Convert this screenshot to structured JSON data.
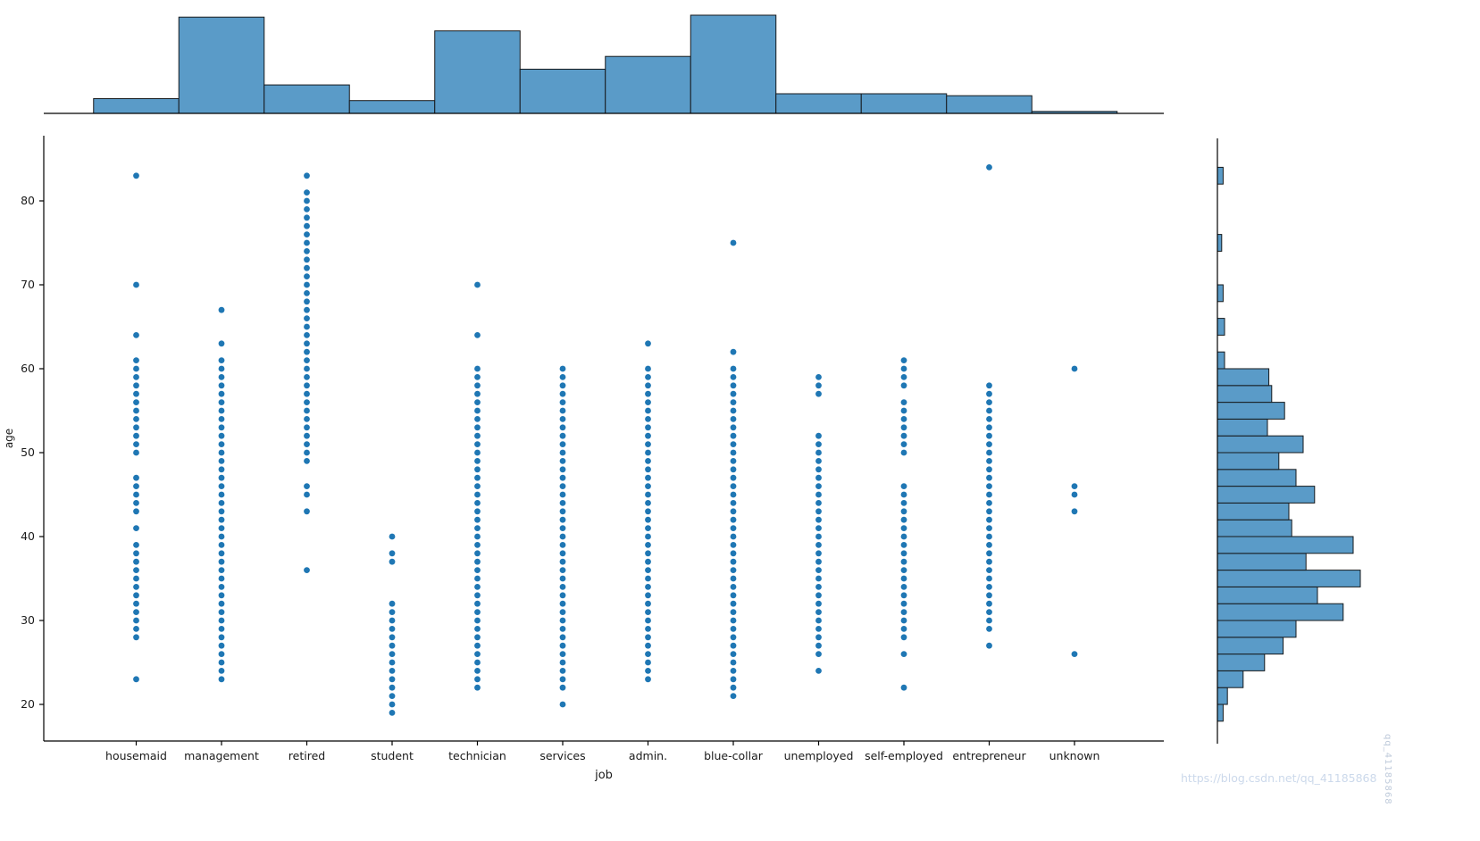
{
  "watermark": {
    "bottom_right": "https://blog.csdn.net/qq_41185868",
    "side": "qq_41185868"
  },
  "colors": {
    "dot": "#1f77b4",
    "bar_fill": "#5a9bc8",
    "bar_edge": "#16191c",
    "axis": "#000000",
    "text": "#1a1a1a"
  },
  "chart_data": {
    "type": "scatter",
    "title": "",
    "xlabel": "job",
    "ylabel": "age",
    "legend": "none",
    "grid": false,
    "categories": [
      "housemaid",
      "management",
      "retired",
      "student",
      "technician",
      "services",
      "admin.",
      "blue-collar",
      "unemployed",
      "self-employed",
      "entrepreneur",
      "unknown"
    ],
    "y_ticks": [
      20,
      30,
      40,
      50,
      60,
      70,
      80
    ],
    "ylim": [
      15.6,
      87.8
    ],
    "series": [
      {
        "job": "housemaid",
        "ages": [
          83,
          70,
          64,
          61,
          60,
          59,
          58,
          57,
          56,
          55,
          54,
          53,
          52,
          51,
          50,
          47,
          46,
          45,
          44,
          43,
          41,
          39,
          38,
          37,
          36,
          35,
          34,
          33,
          32,
          31,
          30,
          29,
          28,
          23
        ]
      },
      {
        "job": "management",
        "ages": [
          67,
          63,
          61,
          60,
          59,
          58,
          57,
          56,
          55,
          54,
          53,
          52,
          51,
          50,
          49,
          48,
          47,
          46,
          45,
          44,
          43,
          42,
          41,
          40,
          39,
          38,
          37,
          36,
          35,
          34,
          33,
          32,
          31,
          30,
          29,
          28,
          27,
          26,
          25,
          24,
          23
        ]
      },
      {
        "job": "retired",
        "ages": [
          83,
          81,
          80,
          79,
          78,
          77,
          76,
          75,
          74,
          73,
          72,
          71,
          70,
          69,
          68,
          67,
          66,
          65,
          64,
          63,
          62,
          61,
          60,
          59,
          58,
          57,
          56,
          55,
          54,
          53,
          52,
          51,
          50,
          49,
          46,
          45,
          43,
          36
        ]
      },
      {
        "job": "student",
        "ages": [
          40,
          38,
          37,
          32,
          31,
          30,
          29,
          28,
          27,
          26,
          25,
          24,
          23,
          22,
          21,
          20,
          19
        ]
      },
      {
        "job": "technician",
        "ages": [
          70,
          64,
          60,
          59,
          58,
          57,
          56,
          55,
          54,
          53,
          52,
          51,
          50,
          49,
          48,
          47,
          46,
          45,
          44,
          43,
          42,
          41,
          40,
          39,
          38,
          37,
          36,
          35,
          34,
          33,
          32,
          31,
          30,
          29,
          28,
          27,
          26,
          25,
          24,
          23,
          22
        ]
      },
      {
        "job": "services",
        "ages": [
          60,
          59,
          58,
          57,
          56,
          55,
          54,
          53,
          52,
          51,
          50,
          49,
          48,
          47,
          46,
          45,
          44,
          43,
          42,
          41,
          40,
          39,
          38,
          37,
          36,
          35,
          34,
          33,
          32,
          31,
          30,
          29,
          28,
          27,
          26,
          25,
          24,
          23,
          22,
          20
        ]
      },
      {
        "job": "admin.",
        "ages": [
          63,
          60,
          59,
          58,
          57,
          56,
          55,
          54,
          53,
          52,
          51,
          50,
          49,
          48,
          47,
          46,
          45,
          44,
          43,
          42,
          41,
          40,
          39,
          38,
          37,
          36,
          35,
          34,
          33,
          32,
          31,
          30,
          29,
          28,
          27,
          26,
          25,
          24,
          23
        ]
      },
      {
        "job": "blue-collar",
        "ages": [
          75,
          62,
          60,
          59,
          58,
          57,
          56,
          55,
          54,
          53,
          52,
          51,
          50,
          49,
          48,
          47,
          46,
          45,
          44,
          43,
          42,
          41,
          40,
          39,
          38,
          37,
          36,
          35,
          34,
          33,
          32,
          31,
          30,
          29,
          28,
          27,
          26,
          25,
          24,
          23,
          22,
          21
        ]
      },
      {
        "job": "unemployed",
        "ages": [
          59,
          58,
          57,
          52,
          51,
          50,
          49,
          48,
          47,
          46,
          45,
          44,
          43,
          42,
          41,
          40,
          39,
          38,
          37,
          36,
          35,
          34,
          33,
          32,
          31,
          30,
          29,
          28,
          27,
          26,
          24
        ]
      },
      {
        "job": "self-employed",
        "ages": [
          61,
          60,
          59,
          58,
          56,
          55,
          54,
          53,
          52,
          51,
          50,
          46,
          45,
          44,
          43,
          42,
          41,
          40,
          39,
          38,
          37,
          36,
          35,
          34,
          33,
          32,
          31,
          30,
          29,
          28,
          26,
          22
        ]
      },
      {
        "job": "entrepreneur",
        "ages": [
          84,
          58,
          57,
          56,
          55,
          54,
          53,
          52,
          51,
          50,
          49,
          48,
          47,
          46,
          45,
          44,
          43,
          42,
          41,
          40,
          39,
          38,
          37,
          36,
          35,
          34,
          33,
          32,
          31,
          30,
          29,
          27
        ]
      },
      {
        "job": "unknown",
        "ages": [
          60,
          46,
          45,
          43,
          26
        ]
      }
    ],
    "top_histogram": {
      "type": "bar",
      "orientation": "vertical",
      "categories": [
        "housemaid",
        "management",
        "retired",
        "student",
        "technician",
        "services",
        "admin.",
        "blue-collar",
        "unemployed",
        "self-employed",
        "entrepreneur",
        "unknown"
      ],
      "values_pct_of_max": [
        15,
        98,
        29,
        13,
        84,
        45,
        58,
        100,
        20,
        20,
        18,
        2
      ]
    },
    "right_histogram": {
      "type": "bar",
      "orientation": "horizontal",
      "bins": [
        [
          18,
          20
        ],
        [
          20,
          22
        ],
        [
          22,
          24
        ],
        [
          24,
          26
        ],
        [
          26,
          28
        ],
        [
          28,
          30
        ],
        [
          30,
          32
        ],
        [
          32,
          34
        ],
        [
          34,
          36
        ],
        [
          36,
          38
        ],
        [
          38,
          40
        ],
        [
          40,
          42
        ],
        [
          42,
          44
        ],
        [
          44,
          46
        ],
        [
          46,
          48
        ],
        [
          48,
          50
        ],
        [
          50,
          52
        ],
        [
          52,
          54
        ],
        [
          54,
          56
        ],
        [
          56,
          58
        ],
        [
          58,
          60
        ],
        [
          60,
          62
        ],
        [
          64,
          66
        ],
        [
          68,
          70
        ],
        [
          74,
          76
        ],
        [
          82,
          84
        ]
      ],
      "values_pct_of_max": [
        4,
        7,
        18,
        33,
        46,
        55,
        88,
        70,
        100,
        62,
        95,
        52,
        50,
        68,
        55,
        43,
        60,
        35,
        47,
        38,
        36,
        5,
        5,
        4,
        3,
        4
      ]
    }
  }
}
